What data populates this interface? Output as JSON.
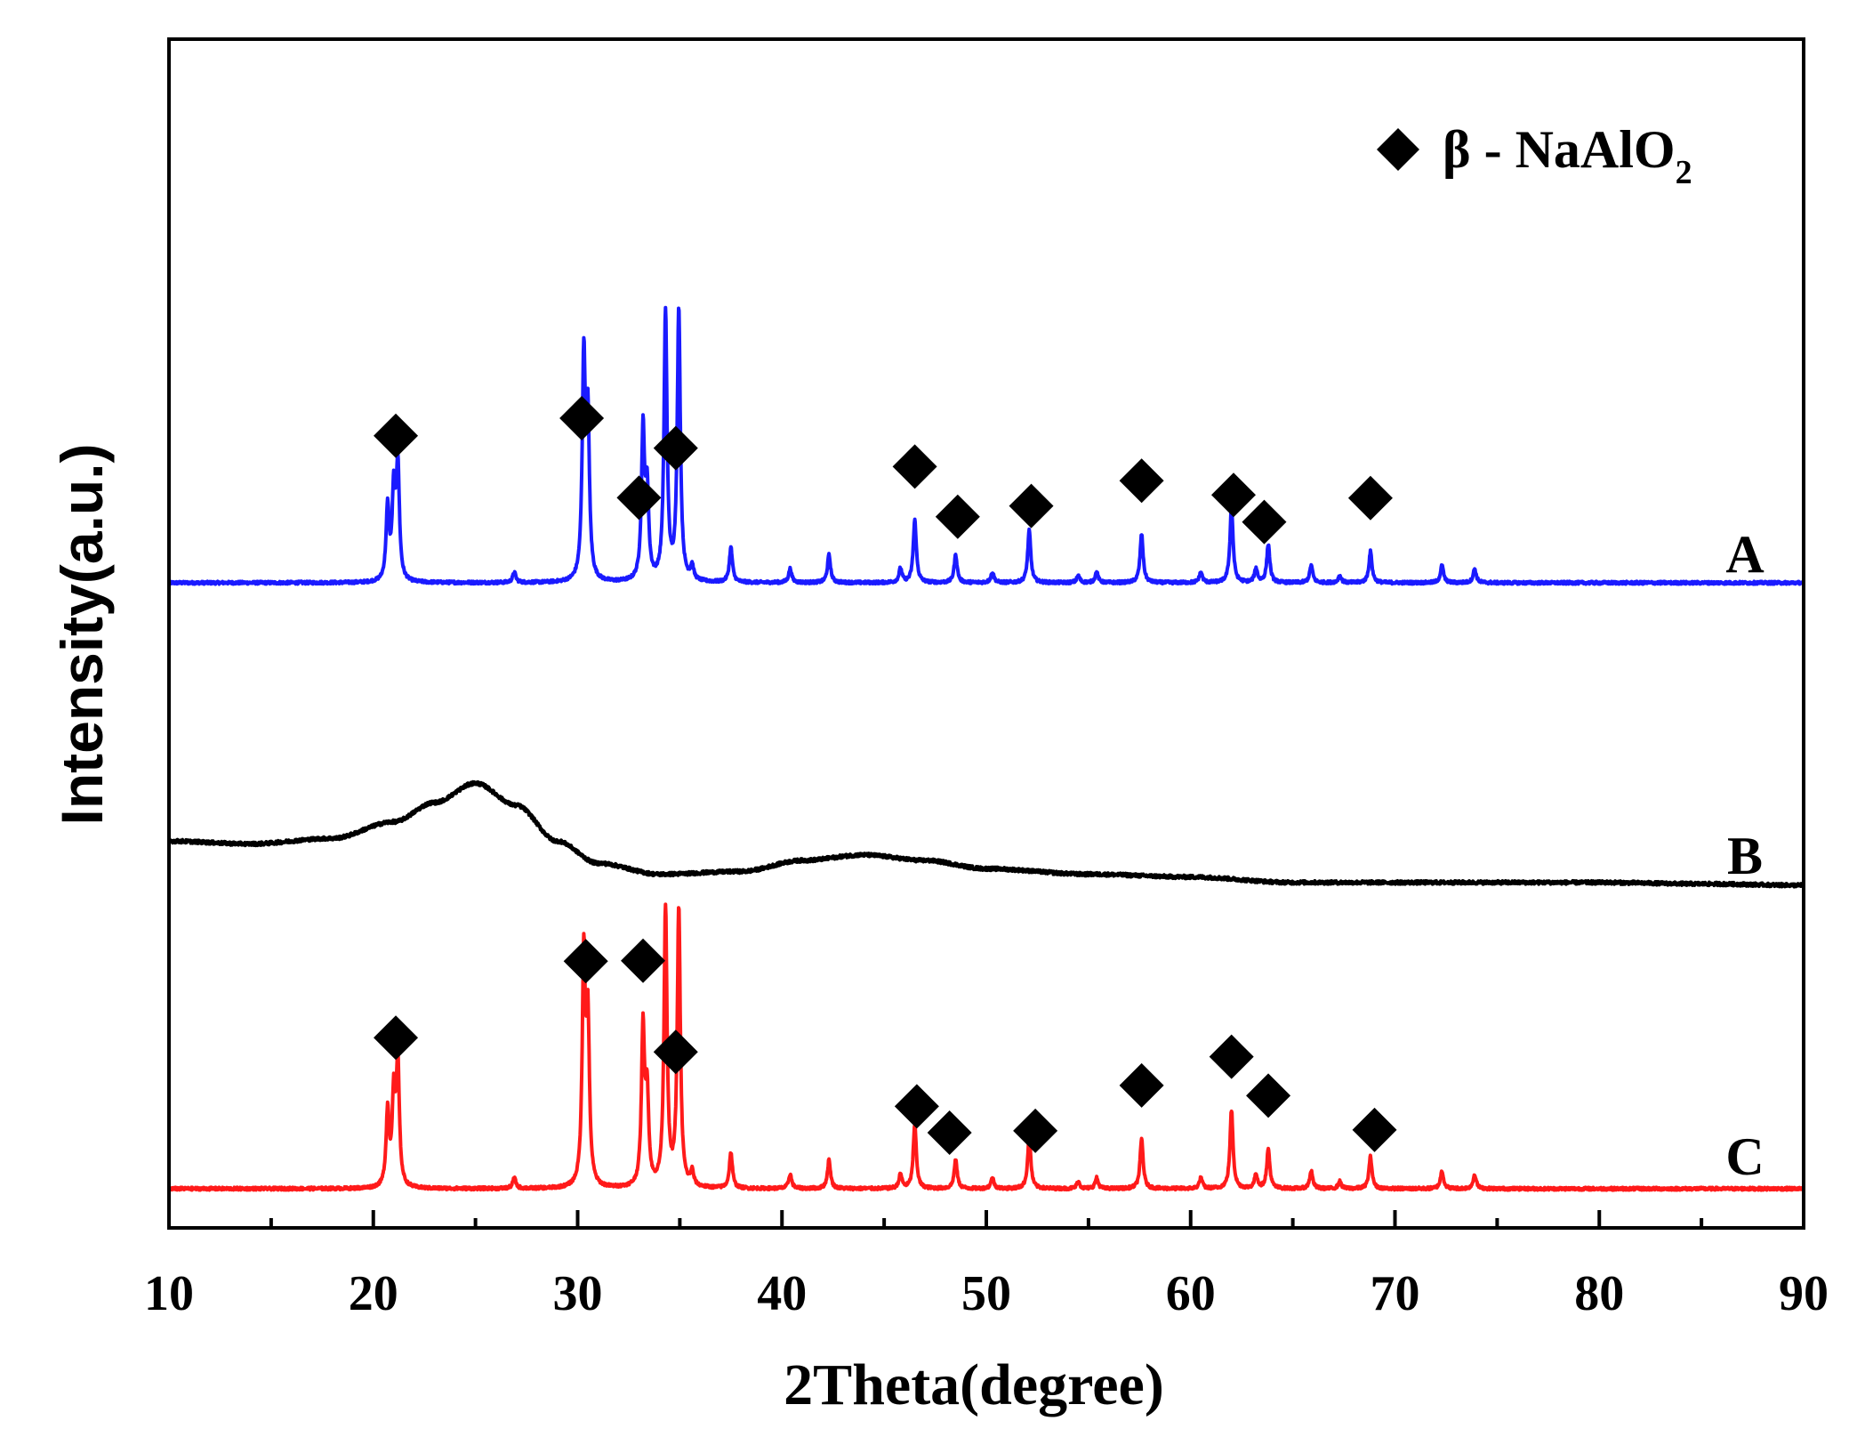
{
  "chart_data": {
    "type": "line",
    "xlabel": "2Theta(degree)",
    "ylabel": "Intensity(a.u.)",
    "xlim": [
      10,
      90
    ],
    "xticks": [
      "10",
      "20",
      "30",
      "40",
      "50",
      "60",
      "70",
      "80",
      "90"
    ],
    "y_ticks_shown": false,
    "grid": false,
    "legend": {
      "placement": "top-right",
      "marker": "diamond",
      "text": "β  - NaAlO",
      "subscript": "2",
      "color": "#000000"
    },
    "series": [
      {
        "name": "A",
        "color": "#1a1aff",
        "pattern": "crystalline",
        "peaks": [
          {
            "x": 20.7,
            "h": 0.21
          },
          {
            "x": 21.0,
            "h": 0.25
          },
          {
            "x": 21.2,
            "h": 0.33
          },
          {
            "x": 26.9,
            "h": 0.03
          },
          {
            "x": 30.3,
            "h": 0.63
          },
          {
            "x": 30.5,
            "h": 0.45
          },
          {
            "x": 33.2,
            "h": 0.43
          },
          {
            "x": 33.4,
            "h": 0.25
          },
          {
            "x": 34.3,
            "h": 0.77
          },
          {
            "x": 34.95,
            "h": 0.78
          },
          {
            "x": 35.6,
            "h": 0.04
          },
          {
            "x": 37.5,
            "h": 0.1
          },
          {
            "x": 40.4,
            "h": 0.04
          },
          {
            "x": 42.3,
            "h": 0.08
          },
          {
            "x": 45.8,
            "h": 0.04
          },
          {
            "x": 46.5,
            "h": 0.18
          },
          {
            "x": 48.5,
            "h": 0.08
          },
          {
            "x": 50.3,
            "h": 0.03
          },
          {
            "x": 52.1,
            "h": 0.15
          },
          {
            "x": 54.5,
            "h": 0.02
          },
          {
            "x": 55.4,
            "h": 0.03
          },
          {
            "x": 57.6,
            "h": 0.14
          },
          {
            "x": 60.5,
            "h": 0.03
          },
          {
            "x": 62.0,
            "h": 0.22
          },
          {
            "x": 63.2,
            "h": 0.04
          },
          {
            "x": 63.8,
            "h": 0.11
          },
          {
            "x": 65.9,
            "h": 0.05
          },
          {
            "x": 67.3,
            "h": 0.02
          },
          {
            "x": 68.8,
            "h": 0.09
          },
          {
            "x": 72.3,
            "h": 0.05
          },
          {
            "x": 73.9,
            "h": 0.04
          }
        ],
        "markers_x": [
          21.1,
          30.2,
          33.0,
          34.8,
          46.5,
          48.6,
          52.2,
          57.6,
          62.1,
          63.6,
          68.8
        ]
      },
      {
        "name": "B",
        "color": "#000000",
        "pattern": "amorphous",
        "points": [
          [
            10,
            0.17
          ],
          [
            14,
            0.16
          ],
          [
            18,
            0.18
          ],
          [
            21,
            0.24
          ],
          [
            23,
            0.31
          ],
          [
            25,
            0.38
          ],
          [
            27,
            0.3
          ],
          [
            29,
            0.17
          ],
          [
            31,
            0.09
          ],
          [
            34,
            0.05
          ],
          [
            38,
            0.06
          ],
          [
            41,
            0.1
          ],
          [
            44,
            0.12
          ],
          [
            47,
            0.1
          ],
          [
            50,
            0.07
          ],
          [
            55,
            0.05
          ],
          [
            60,
            0.04
          ],
          [
            65,
            0.02
          ],
          [
            70,
            0.02
          ],
          [
            75,
            0.02
          ],
          [
            80,
            0.02
          ],
          [
            85,
            0.015
          ],
          [
            90,
            0.01
          ]
        ]
      },
      {
        "name": "C",
        "color": "#ff1a1a",
        "pattern": "crystalline",
        "peaks": [
          {
            "x": 20.7,
            "h": 0.21
          },
          {
            "x": 21.0,
            "h": 0.25
          },
          {
            "x": 21.2,
            "h": 0.34
          },
          {
            "x": 26.9,
            "h": 0.03
          },
          {
            "x": 30.3,
            "h": 0.64
          },
          {
            "x": 30.5,
            "h": 0.45
          },
          {
            "x": 33.2,
            "h": 0.44
          },
          {
            "x": 33.4,
            "h": 0.25
          },
          {
            "x": 34.3,
            "h": 0.78
          },
          {
            "x": 34.95,
            "h": 0.78
          },
          {
            "x": 35.6,
            "h": 0.04
          },
          {
            "x": 37.5,
            "h": 0.1
          },
          {
            "x": 40.4,
            "h": 0.04
          },
          {
            "x": 42.3,
            "h": 0.08
          },
          {
            "x": 45.8,
            "h": 0.04
          },
          {
            "x": 46.5,
            "h": 0.18
          },
          {
            "x": 48.5,
            "h": 0.08
          },
          {
            "x": 50.3,
            "h": 0.03
          },
          {
            "x": 52.1,
            "h": 0.15
          },
          {
            "x": 54.5,
            "h": 0.02
          },
          {
            "x": 55.4,
            "h": 0.03
          },
          {
            "x": 57.6,
            "h": 0.14
          },
          {
            "x": 60.5,
            "h": 0.03
          },
          {
            "x": 62.0,
            "h": 0.22
          },
          {
            "x": 63.2,
            "h": 0.04
          },
          {
            "x": 63.8,
            "h": 0.11
          },
          {
            "x": 65.9,
            "h": 0.05
          },
          {
            "x": 67.3,
            "h": 0.02
          },
          {
            "x": 68.8,
            "h": 0.09
          },
          {
            "x": 72.3,
            "h": 0.05
          },
          {
            "x": 73.9,
            "h": 0.04
          }
        ],
        "markers_x": [
          21.1,
          30.4,
          33.2,
          34.8,
          46.6,
          48.2,
          52.4,
          57.6,
          62.0,
          63.8,
          69.0
        ]
      }
    ]
  }
}
